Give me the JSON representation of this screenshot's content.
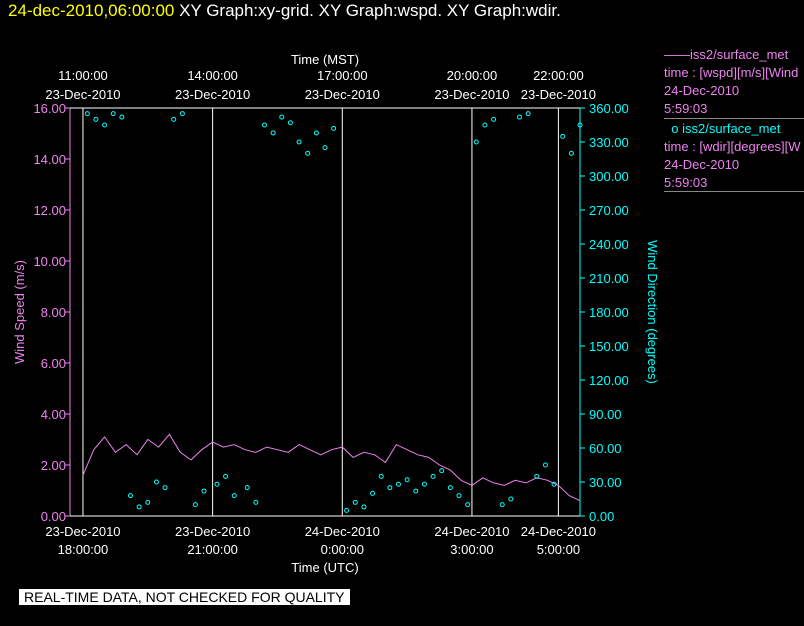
{
  "header": {
    "timestamp": "24-dec-2010,06:00:00",
    "graphs": "XY Graph:xy-grid.  XY Graph:wspd.  XY Graph:wdir."
  },
  "legend": {
    "speed": {
      "name": "iss2/surface_met",
      "line1": "time : [wspd][m/s][Wind",
      "date": "24-Dec-2010",
      "time": "5:59:03",
      "marker": "——"
    },
    "dir": {
      "name": "iss2/surface_met",
      "line1": "time : [wdir][degrees][W",
      "date": "24-Dec-2010",
      "time": "5:59:03",
      "marker": "o"
    }
  },
  "footer_note": "REAL-TIME DATA, NOT CHECKED FOR QUALITY",
  "colors": {
    "speed": "#ee82ee",
    "dir": "#00ffff",
    "grid": "#ffffff",
    "title_ts": "#ffff00"
  },
  "chart_data": {
    "type": "line",
    "x_label_bottom": "Time (UTC)",
    "x_label_top": "Time (MST)",
    "ylabel_left": "Wind Speed (m/s)",
    "ylabel_right": "Wind Direction (degrees)",
    "x_range_utc_hours": [
      17.7,
      29.5
    ],
    "ylim_left": [
      0,
      16
    ],
    "ylim_right": [
      0,
      360
    ],
    "grid": "vertical lines at labelled times",
    "y_ticks_left": [
      "0.00",
      "2.00",
      "4.00",
      "6.00",
      "8.00",
      "10.00",
      "12.00",
      "14.00",
      "16.00"
    ],
    "y_ticks_right": [
      "0.00",
      "30.00",
      "60.00",
      "90.00",
      "120.00",
      "150.00",
      "180.00",
      "210.00",
      "240.00",
      "270.00",
      "300.00",
      "330.00",
      "360.00"
    ],
    "x_ticks_bottom": [
      {
        "x": 18,
        "line1": "23-Dec-2010",
        "line2": "18:00:00"
      },
      {
        "x": 21,
        "line1": "23-Dec-2010",
        "line2": "21:00:00"
      },
      {
        "x": 24,
        "line1": "24-Dec-2010",
        "line2": "0:00:00"
      },
      {
        "x": 27,
        "line1": "24-Dec-2010",
        "line2": "3:00:00"
      },
      {
        "x": 29,
        "line1": "24-Dec-2010",
        "line2": "5:00:00"
      }
    ],
    "x_ticks_top": [
      {
        "x": 18,
        "line1": "11:00:00",
        "line2": "23-Dec-2010"
      },
      {
        "x": 21,
        "line1": "14:00:00",
        "line2": "23-Dec-2010"
      },
      {
        "x": 24,
        "line1": "17:00:00",
        "line2": "23-Dec-2010"
      },
      {
        "x": 27,
        "line1": "20:00:00",
        "line2": "23-Dec-2010"
      },
      {
        "x": 29,
        "line1": "22:00:00",
        "line2": "23-Dec-2010"
      }
    ],
    "series": [
      {
        "name": "iss2/surface_met wspd",
        "axis": "left",
        "style": "line",
        "x": [
          18.0,
          18.25,
          18.5,
          18.75,
          19.0,
          19.25,
          19.5,
          19.75,
          20.0,
          20.25,
          20.5,
          20.75,
          21.0,
          21.25,
          21.5,
          21.75,
          22.0,
          22.25,
          22.5,
          22.75,
          23.0,
          23.25,
          23.5,
          23.75,
          24.0,
          24.25,
          24.5,
          24.75,
          25.0,
          25.25,
          25.5,
          25.75,
          26.0,
          26.25,
          26.5,
          26.75,
          27.0,
          27.25,
          27.5,
          27.75,
          28.0,
          28.25,
          28.5,
          28.75,
          29.0,
          29.25,
          29.5
        ],
        "y": [
          1.6,
          2.6,
          3.1,
          2.5,
          2.8,
          2.4,
          3.0,
          2.7,
          3.2,
          2.5,
          2.2,
          2.6,
          2.9,
          2.7,
          2.8,
          2.6,
          2.5,
          2.7,
          2.6,
          2.5,
          2.8,
          2.6,
          2.4,
          2.6,
          2.7,
          2.3,
          2.5,
          2.4,
          2.1,
          2.8,
          2.6,
          2.4,
          2.3,
          2.0,
          1.8,
          1.4,
          1.2,
          1.5,
          1.3,
          1.2,
          1.4,
          1.3,
          1.5,
          1.4,
          1.2,
          0.8,
          0.6
        ]
      },
      {
        "name": "iss2/surface_met wdir",
        "axis": "right",
        "style": "markers",
        "x": [
          18.1,
          18.3,
          18.5,
          18.7,
          18.9,
          19.1,
          19.3,
          19.5,
          19.7,
          19.9,
          20.1,
          20.3,
          20.6,
          20.8,
          21.1,
          21.3,
          21.5,
          21.8,
          22.0,
          22.2,
          22.4,
          22.6,
          22.8,
          23.0,
          23.2,
          23.4,
          23.6,
          23.8,
          24.1,
          24.3,
          24.5,
          24.7,
          24.9,
          25.1,
          25.3,
          25.5,
          25.7,
          25.9,
          26.1,
          26.3,
          26.5,
          26.7,
          26.9,
          27.1,
          27.3,
          27.5,
          27.7,
          27.9,
          28.1,
          28.3,
          28.5,
          28.7,
          28.9,
          29.1,
          29.3,
          29.5
        ],
        "y": [
          355,
          350,
          345,
          355,
          352,
          18,
          8,
          12,
          30,
          25,
          350,
          355,
          10,
          22,
          28,
          35,
          18,
          25,
          12,
          345,
          338,
          352,
          347,
          330,
          320,
          338,
          325,
          342,
          5,
          12,
          8,
          20,
          35,
          25,
          28,
          32,
          22,
          28,
          35,
          40,
          25,
          18,
          10,
          330,
          345,
          350,
          10,
          15,
          352,
          355,
          35,
          45,
          28,
          335,
          320,
          345
        ]
      }
    ]
  }
}
